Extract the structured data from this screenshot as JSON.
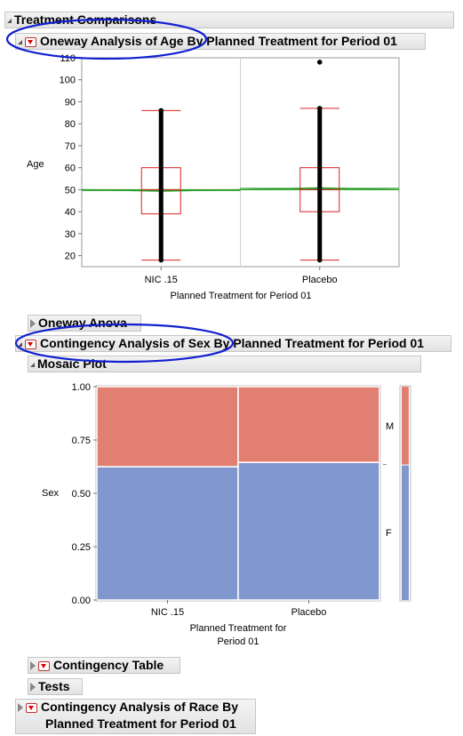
{
  "sections": {
    "treatment_comparisons": "Treatment Comparisons",
    "oneway_title": "Oneway Analysis of Age By Planned Treatment for Period 01",
    "oneway_anova": "Oneway Anova",
    "contingency_sex_title": "Contingency Analysis of Sex By Planned Treatment for Period 01",
    "mosaic_plot": "Mosaic Plot",
    "contingency_table": "Contingency Table",
    "tests": "Tests",
    "contingency_race_line1": "Contingency Analysis of Race By",
    "contingency_race_line2": "Planned Treatment for Period 01"
  },
  "colors": {
    "box": "#d92020",
    "means": "#2a9d2a",
    "points": "#000000",
    "mosaic_m": "#e07f72",
    "mosaic_f": "#7f97cc",
    "highlight": "#1020d0"
  },
  "chart_data": [
    {
      "type": "box",
      "title": "",
      "xlabel": "Planned Treatment for Period 01",
      "ylabel": "Age",
      "categories": [
        "NIC .15",
        "Placebo"
      ],
      "ylim": [
        15,
        110
      ],
      "yticks": [
        20,
        30,
        40,
        50,
        60,
        70,
        80,
        90,
        100,
        110
      ],
      "ytick_labels": [
        "20",
        "30",
        "40",
        "50",
        "60",
        "70",
        "80",
        "90",
        "100",
        "110"
      ],
      "boxes": [
        {
          "category": "NIC .15",
          "min": 18,
          "q1": 39,
          "median": 50,
          "q3": 60,
          "max": 86,
          "outliers": [],
          "points_min": 18,
          "points_max": 86
        },
        {
          "category": "Placebo",
          "min": 18,
          "q1": 40,
          "median": 50,
          "q3": 60,
          "max": 87,
          "outliers": [
            108
          ],
          "points_min": 18,
          "points_max": 87
        }
      ],
      "grand_mean": 50,
      "group_means": [
        49.6,
        50.6
      ]
    },
    {
      "type": "mosaic",
      "title": "",
      "xlabel": "Planned Treatment for Period 01",
      "ylabel": "Sex",
      "categories": [
        "NIC .15",
        "Placebo"
      ],
      "ylim": [
        0,
        1
      ],
      "yticks": [
        0,
        0.25,
        0.5,
        0.75,
        1
      ],
      "ytick_labels": [
        "0.00",
        "0.25",
        "0.50",
        "0.75",
        "1.00"
      ],
      "column_widths": [
        0.5,
        0.5
      ],
      "series": [
        {
          "name": "F",
          "values": [
            0.625,
            0.645
          ]
        },
        {
          "name": "M",
          "values": [
            0.375,
            0.355
          ]
        }
      ],
      "overall": {
        "F": 0.635,
        "M": 0.365
      }
    }
  ]
}
